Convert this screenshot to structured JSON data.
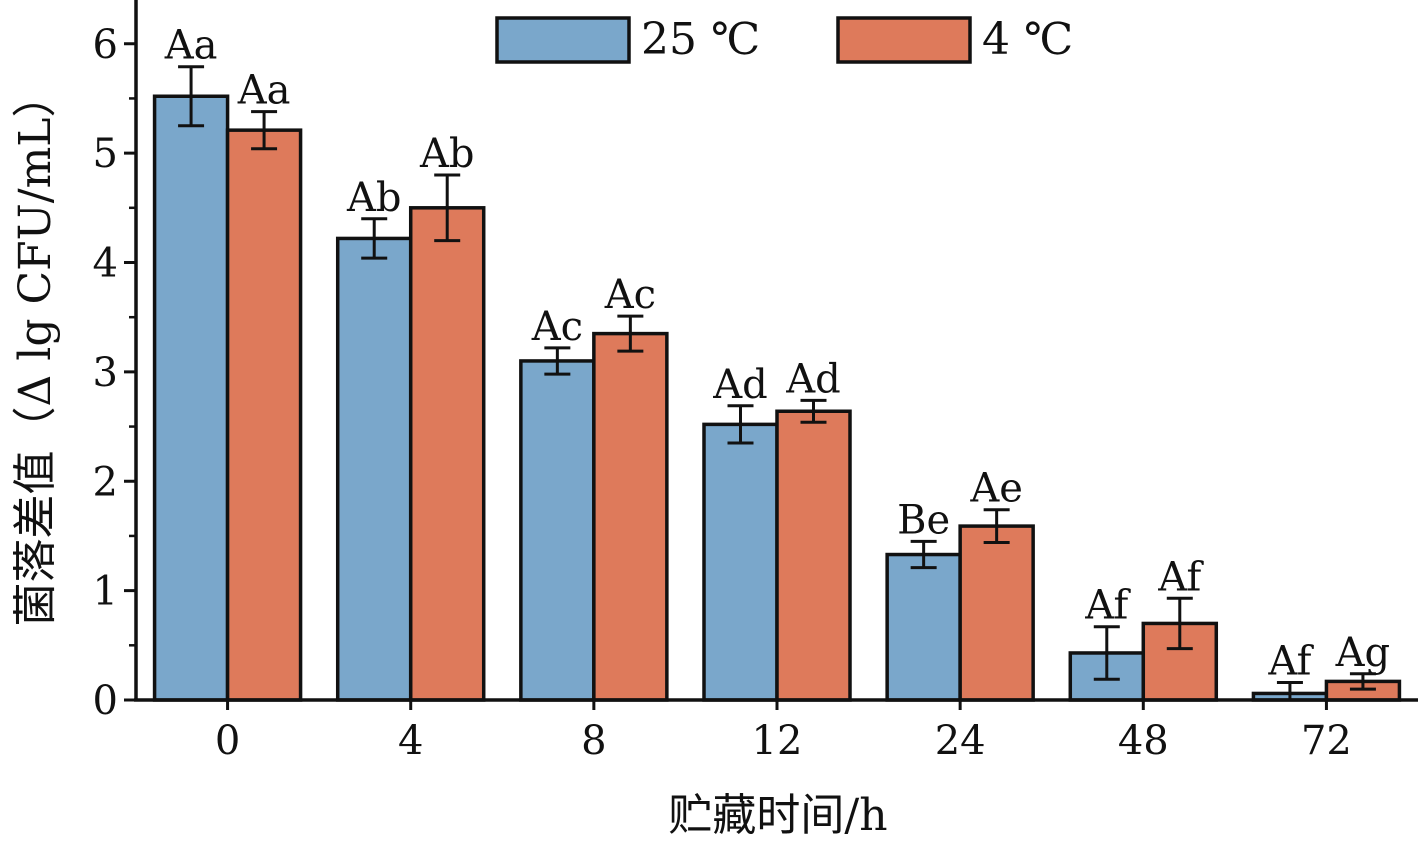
{
  "chart_data": {
    "type": "bar",
    "title": "",
    "xlabel": "贮藏时间/h",
    "ylabel": "菌落差值（Δ lg CFU/mL）",
    "categories": [
      "0",
      "4",
      "8",
      "12",
      "24",
      "48",
      "72"
    ],
    "ylim": [
      0,
      6.4
    ],
    "yticks": [
      "0",
      "1",
      "2",
      "3",
      "4",
      "5",
      "6"
    ],
    "grid": false,
    "legend_position": "top-center",
    "series": [
      {
        "name": "25 ℃",
        "color": "#7aa7cb",
        "values": [
          5.52,
          4.22,
          3.1,
          2.52,
          1.33,
          0.43,
          0.06
        ],
        "errors": [
          0.27,
          0.18,
          0.12,
          0.17,
          0.12,
          0.24,
          0.1
        ],
        "labels": [
          "Aa",
          "Ab",
          "Ac",
          "Ad",
          "Be",
          "Af",
          "Af"
        ]
      },
      {
        "name": "4 ℃",
        "color": "#de7a5b",
        "values": [
          5.21,
          4.5,
          3.35,
          2.64,
          1.59,
          0.7,
          0.17
        ],
        "errors": [
          0.17,
          0.3,
          0.16,
          0.1,
          0.15,
          0.23,
          0.07
        ],
        "labels": [
          "Aa",
          "Ab",
          "Ac",
          "Ad",
          "Ae",
          "Af",
          "Ag"
        ]
      }
    ]
  }
}
